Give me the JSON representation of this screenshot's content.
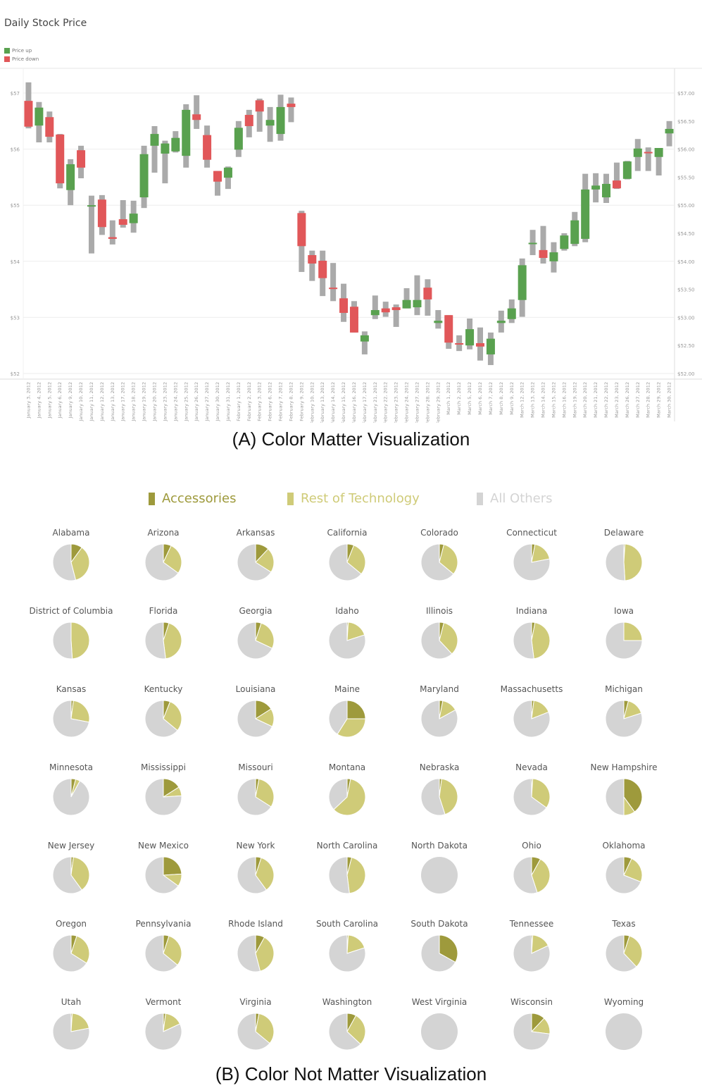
{
  "colors": {
    "up": "#59a14f",
    "down": "#e15759",
    "wick": "#aaaaaa",
    "accessories": "#9e9a3c",
    "rest_of_technology": "#cfcb78",
    "all_others": "#d4d4d4",
    "grid": "#eeeeee",
    "axis_text": "#999999"
  },
  "captions": {
    "a": "(A) Color Matter Visualization",
    "b": "(B) Color Not Matter Visualization"
  },
  "chart_data": [
    {
      "type": "candlestick",
      "title": "Daily Stock Price",
      "legend": [
        {
          "label": "Price up",
          "color": "#59a14f"
        },
        {
          "label": "Price down",
          "color": "#e15759"
        }
      ],
      "legend_placement": "top-left",
      "ylim": [
        52,
        57
      ],
      "y_ticks_left": [
        "$57",
        "$56",
        "$55",
        "$54",
        "$53",
        "$52"
      ],
      "y_ticks_right": [
        "$57.00",
        "$56.50",
        "$56.00",
        "$55.50",
        "$55.00",
        "$54.50",
        "$54.00",
        "$53.50",
        "$53.00",
        "$52.50",
        "$52.00"
      ],
      "grid": true,
      "x": [
        "January 3, 2012",
        "January 4, 2012",
        "January 5, 2012",
        "January 6, 2012",
        "January 9, 2012",
        "January 10, 2012",
        "January 11, 2012",
        "January 12, 2012",
        "January 13, 2012",
        "January 17, 2012",
        "January 18, 2012",
        "January 19, 2012",
        "January 20, 2012",
        "January 23, 2012",
        "January 24, 2012",
        "January 25, 2012",
        "January 26, 2012",
        "January 27, 2012",
        "January 30, 2012",
        "January 31, 2012",
        "February 1, 2012",
        "February 2, 2012",
        "February 3, 2012",
        "February 6, 2012",
        "February 7, 2012",
        "February 8, 2012",
        "February 9, 2012",
        "February 10, 2012",
        "February 13, 2012",
        "February 14, 2012",
        "February 15, 2012",
        "February 16, 2012",
        "February 17, 2012",
        "February 21, 2012",
        "February 22, 2012",
        "February 23, 2012",
        "February 24, 2012",
        "February 27, 2012",
        "February 28, 2012",
        "February 29, 2012",
        "March 1, 2012",
        "March 2, 2012",
        "March 5, 2012",
        "March 6, 2012",
        "March 7, 2012",
        "March 8, 2012",
        "March 9, 2012",
        "March 12, 2012",
        "March 13, 2012",
        "March 14, 2012",
        "March 15, 2012",
        "March 16, 2012",
        "March 19, 2012",
        "March 20, 2012",
        "March 21, 2012",
        "March 22, 2012",
        "March 23, 2012",
        "March 26, 2012",
        "March 27, 2012",
        "March 28, 2012",
        "March 29, 2012",
        "March 30, 2012"
      ],
      "ohlc_fields": [
        "open",
        "high",
        "low",
        "close"
      ],
      "ohlc": [
        [
          56.86,
          57.19,
          56.37,
          56.4
        ],
        [
          56.42,
          56.84,
          56.12,
          56.74
        ],
        [
          56.57,
          56.67,
          56.12,
          56.22
        ],
        [
          56.26,
          56.27,
          55.3,
          55.39
        ],
        [
          55.27,
          55.82,
          55.0,
          55.73
        ],
        [
          55.98,
          56.06,
          55.48,
          55.67
        ],
        [
          55.0,
          55.17,
          54.14,
          55.0
        ],
        [
          55.1,
          55.18,
          54.47,
          54.61
        ],
        [
          54.43,
          54.73,
          54.3,
          54.4
        ],
        [
          54.75,
          55.09,
          54.6,
          54.65
        ],
        [
          54.68,
          55.08,
          54.51,
          54.85
        ],
        [
          55.14,
          56.06,
          54.95,
          55.91
        ],
        [
          56.06,
          56.41,
          55.58,
          56.27
        ],
        [
          55.92,
          56.15,
          55.39,
          56.1
        ],
        [
          55.96,
          56.32,
          55.94,
          56.2
        ],
        [
          55.88,
          56.8,
          55.67,
          56.7
        ],
        [
          56.62,
          56.96,
          56.36,
          56.52
        ],
        [
          56.25,
          56.42,
          55.67,
          55.81
        ],
        [
          55.61,
          55.61,
          55.17,
          55.42
        ],
        [
          55.49,
          55.69,
          55.29,
          55.67
        ],
        [
          55.99,
          56.5,
          55.86,
          56.38
        ],
        [
          56.61,
          56.7,
          56.21,
          56.41
        ],
        [
          56.87,
          56.9,
          56.31,
          56.67
        ],
        [
          56.42,
          56.75,
          56.13,
          56.52
        ],
        [
          56.27,
          56.97,
          56.15,
          56.75
        ],
        [
          56.81,
          56.92,
          56.48,
          56.75
        ],
        [
          54.86,
          54.9,
          53.81,
          54.27
        ],
        [
          54.11,
          54.19,
          53.65,
          53.96
        ],
        [
          54.01,
          54.19,
          53.38,
          53.7
        ],
        [
          53.53,
          53.97,
          53.29,
          53.51
        ],
        [
          53.34,
          53.6,
          52.92,
          53.08
        ],
        [
          53.19,
          53.29,
          52.73,
          52.73
        ],
        [
          52.57,
          52.75,
          52.34,
          52.68
        ],
        [
          53.04,
          53.39,
          52.97,
          53.13
        ],
        [
          53.16,
          53.28,
          53.01,
          53.09
        ],
        [
          53.18,
          53.23,
          52.83,
          53.13
        ],
        [
          53.16,
          53.52,
          53.16,
          53.31
        ],
        [
          53.18,
          53.75,
          53.04,
          53.31
        ],
        [
          53.53,
          53.68,
          53.03,
          53.32
        ],
        [
          52.9,
          53.13,
          52.8,
          52.94
        ],
        [
          53.04,
          53.04,
          52.44,
          52.55
        ],
        [
          52.54,
          52.68,
          52.4,
          52.53
        ],
        [
          52.5,
          52.98,
          52.43,
          52.79
        ],
        [
          52.54,
          52.82,
          52.23,
          52.48
        ],
        [
          52.34,
          52.73,
          52.15,
          52.62
        ],
        [
          52.9,
          53.12,
          52.73,
          52.94
        ],
        [
          52.97,
          53.32,
          52.9,
          53.16
        ],
        [
          53.31,
          54.05,
          53.01,
          53.93
        ],
        [
          54.31,
          54.56,
          54.11,
          54.33
        ],
        [
          54.2,
          54.63,
          53.96,
          54.06
        ],
        [
          54.0,
          54.34,
          53.8,
          54.16
        ],
        [
          54.22,
          54.5,
          54.19,
          54.46
        ],
        [
          54.31,
          54.88,
          54.27,
          54.73
        ],
        [
          54.4,
          55.56,
          54.34,
          55.28
        ],
        [
          55.28,
          55.57,
          55.05,
          55.35
        ],
        [
          55.14,
          55.56,
          55.04,
          55.38
        ],
        [
          55.44,
          55.76,
          55.29,
          55.3
        ],
        [
          55.47,
          55.79,
          55.46,
          55.78
        ],
        [
          55.86,
          56.18,
          55.61,
          56.01
        ],
        [
          55.95,
          56.03,
          55.61,
          55.94
        ],
        [
          55.86,
          56.02,
          55.53,
          56.02
        ],
        [
          56.28,
          56.5,
          56.05,
          56.36
        ]
      ]
    },
    {
      "type": "pie",
      "legend": [
        "Accessories",
        "Rest of Technology",
        "All Others"
      ],
      "legend_placement": "top",
      "value_unit": "share",
      "pies": [
        {
          "label": "Alabama",
          "values": [
            0.1,
            0.36
          ]
        },
        {
          "label": "Arizona",
          "values": [
            0.07,
            0.28
          ]
        },
        {
          "label": "Arkansas",
          "values": [
            0.12,
            0.22
          ]
        },
        {
          "label": "California",
          "values": [
            0.06,
            0.3
          ]
        },
        {
          "label": "Colorado",
          "values": [
            0.04,
            0.32
          ]
        },
        {
          "label": "Connecticut",
          "values": [
            0.03,
            0.19
          ]
        },
        {
          "label": "Delaware",
          "values": [
            0.01,
            0.48
          ]
        },
        {
          "label": "District of Columbia",
          "values": [
            0.0,
            0.49
          ]
        },
        {
          "label": "Florida",
          "values": [
            0.05,
            0.43
          ]
        },
        {
          "label": "Georgia",
          "values": [
            0.05,
            0.27
          ]
        },
        {
          "label": "Idaho",
          "values": [
            0.01,
            0.19
          ]
        },
        {
          "label": "Illinois",
          "values": [
            0.04,
            0.34
          ]
        },
        {
          "label": "Indiana",
          "values": [
            0.03,
            0.45
          ]
        },
        {
          "label": "Iowa",
          "values": [
            0.0,
            0.25
          ]
        },
        {
          "label": "Kansas",
          "values": [
            0.02,
            0.26
          ]
        },
        {
          "label": "Kentucky",
          "values": [
            0.06,
            0.3
          ]
        },
        {
          "label": "Louisiana",
          "values": [
            0.16,
            0.16
          ]
        },
        {
          "label": "Maine",
          "values": [
            0.25,
            0.34
          ]
        },
        {
          "label": "Maryland",
          "values": [
            0.03,
            0.14
          ]
        },
        {
          "label": "Massachusetts",
          "values": [
            0.02,
            0.17
          ]
        },
        {
          "label": "Michigan",
          "values": [
            0.04,
            0.16
          ]
        },
        {
          "label": "Minnesota",
          "values": [
            0.04,
            0.04
          ]
        },
        {
          "label": "Mississippi",
          "values": [
            0.16,
            0.08
          ]
        },
        {
          "label": "Missouri",
          "values": [
            0.03,
            0.31
          ]
        },
        {
          "label": "Montana",
          "values": [
            0.03,
            0.6
          ]
        },
        {
          "label": "Nebraska",
          "values": [
            0.02,
            0.43
          ]
        },
        {
          "label": "Nevada",
          "values": [
            0.01,
            0.34
          ]
        },
        {
          "label": "New Hampshire",
          "values": [
            0.4,
            0.1
          ]
        },
        {
          "label": "New Jersey",
          "values": [
            0.02,
            0.38
          ]
        },
        {
          "label": "New Mexico",
          "values": [
            0.24,
            0.11
          ]
        },
        {
          "label": "New York",
          "values": [
            0.05,
            0.35
          ]
        },
        {
          "label": "North Carolina",
          "values": [
            0.04,
            0.44
          ]
        },
        {
          "label": "North Dakota",
          "values": [
            0.0,
            0.0
          ]
        },
        {
          "label": "Ohio",
          "values": [
            0.08,
            0.37
          ]
        },
        {
          "label": "Oklahoma",
          "values": [
            0.07,
            0.24
          ]
        },
        {
          "label": "Oregon",
          "values": [
            0.05,
            0.29
          ]
        },
        {
          "label": "Pennsylvania",
          "values": [
            0.05,
            0.31
          ]
        },
        {
          "label": "Rhode Island",
          "values": [
            0.08,
            0.38
          ]
        },
        {
          "label": "South Carolina",
          "values": [
            0.01,
            0.19
          ]
        },
        {
          "label": "South Dakota",
          "values": [
            0.33,
            0.0
          ]
        },
        {
          "label": "Tennessee",
          "values": [
            0.01,
            0.17
          ]
        },
        {
          "label": "Texas",
          "values": [
            0.05,
            0.33
          ]
        },
        {
          "label": "Utah",
          "values": [
            0.01,
            0.21
          ]
        },
        {
          "label": "Vermont",
          "values": [
            0.02,
            0.16
          ]
        },
        {
          "label": "Virginia",
          "values": [
            0.03,
            0.33
          ]
        },
        {
          "label": "Washington",
          "values": [
            0.08,
            0.29
          ]
        },
        {
          "label": "West Virginia",
          "values": [
            0.0,
            0.0
          ]
        },
        {
          "label": "Wisconsin",
          "values": [
            0.12,
            0.15
          ]
        },
        {
          "label": "Wyoming",
          "values": [
            0.0,
            0.0
          ]
        }
      ]
    }
  ]
}
